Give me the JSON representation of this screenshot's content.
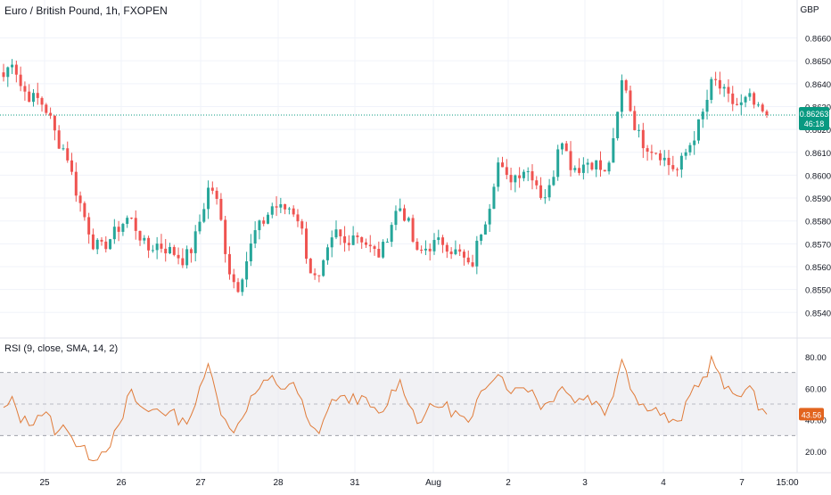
{
  "header": {
    "title": "Euro / British Pound, 1h, FXOPEN",
    "currency": "GBP"
  },
  "rsi": {
    "title": "RSI (9, close, SMA, 14, 2)",
    "current_label": "43.56",
    "ticks": [
      "80.00",
      "60.00",
      "40.00",
      "20.00"
    ],
    "upper_band": 70,
    "lower_band": 30,
    "mid_band": 50
  },
  "price_axis": {
    "ticks": [
      "0.86600",
      "0.86500",
      "0.86400",
      "0.86300",
      "0.86200",
      "0.86100",
      "0.86000",
      "0.85900",
      "0.85800",
      "0.85700",
      "0.85600",
      "0.85500",
      "0.85400"
    ],
    "current_price_label": "0.86263",
    "countdown_label": "46:18"
  },
  "time_axis": {
    "labels": [
      "25",
      "26",
      "27",
      "28",
      "31",
      "Aug",
      "2",
      "3",
      "4",
      "7",
      "15:00"
    ]
  },
  "colors": {
    "up": "#26a69a",
    "down": "#ef5350",
    "rsi_line": "#e07b39",
    "rsi_badge": "#e2641f",
    "current_price": "#089981",
    "band_fill": "#e8e8ec",
    "grid": "#f0f3fa"
  },
  "chart_data": {
    "type": "candlestick",
    "title": "Euro / British Pound, 1h, FXOPEN",
    "ylabel": "GBP",
    "ylim": [
      0.8537,
      0.8668
    ],
    "current_price": 0.86263,
    "grid": true,
    "anchors": [
      [
        "25 Jul",
        0.8643
      ],
      [
        "25 Jul",
        0.8651
      ],
      [
        "25 Jul",
        0.8638
      ],
      [
        "25 Jul",
        0.8634
      ],
      [
        "25 Jul",
        0.8633
      ],
      [
        "25 Jul",
        0.8627
      ],
      [
        "25 Jul",
        0.8615
      ],
      [
        "25 Jul",
        0.861
      ],
      [
        "25 Jul",
        0.8594
      ],
      [
        "25 Jul",
        0.8582
      ],
      [
        "25 Jul",
        0.857
      ],
      [
        "26 Jul",
        0.8568
      ],
      [
        "26 Jul",
        0.8573
      ],
      [
        "26 Jul",
        0.8578
      ],
      [
        "26 Jul",
        0.8582
      ],
      [
        "26 Jul",
        0.8575
      ],
      [
        "26 Jul",
        0.8567
      ],
      [
        "26 Jul",
        0.857
      ],
      [
        "26 Jul",
        0.8568
      ],
      [
        "26 Jul",
        0.8566
      ],
      [
        "26 Jul",
        0.8563
      ],
      [
        "27 Jul",
        0.8568
      ],
      [
        "27 Jul",
        0.8582
      ],
      [
        "27 Jul",
        0.8597
      ],
      [
        "27 Jul",
        0.8585
      ],
      [
        "27 Jul",
        0.856
      ],
      [
        "27 Jul",
        0.855
      ],
      [
        "27 Jul",
        0.8562
      ],
      [
        "27 Jul",
        0.8575
      ],
      [
        "27 Jul",
        0.858
      ],
      [
        "28 Jul",
        0.8587
      ],
      [
        "28 Jul",
        0.8585
      ],
      [
        "28 Jul",
        0.8586
      ],
      [
        "28 Jul",
        0.858
      ],
      [
        "28 Jul",
        0.856
      ],
      [
        "28 Jul",
        0.8552
      ],
      [
        "28 Jul",
        0.8565
      ],
      [
        "28 Jul",
        0.8575
      ],
      [
        "31 Jul",
        0.857
      ],
      [
        "31 Jul",
        0.8575
      ],
      [
        "31 Jul",
        0.8572
      ],
      [
        "31 Jul",
        0.8567
      ],
      [
        "31 Jul",
        0.8565
      ],
      [
        "31 Jul",
        0.8577
      ],
      [
        "31 Jul",
        0.8587
      ],
      [
        "31 Jul",
        0.858
      ],
      [
        "1 Aug",
        0.8565
      ],
      [
        "1 Aug",
        0.8568
      ],
      [
        "1 Aug",
        0.857
      ],
      [
        "1 Aug",
        0.8571
      ],
      [
        "1 Aug",
        0.8567
      ],
      [
        "1 Aug",
        0.8565
      ],
      [
        "1 Aug",
        0.8558
      ],
      [
        "1 Aug",
        0.8574
      ],
      [
        "1 Aug",
        0.8585
      ],
      [
        "2 Aug",
        0.8606
      ],
      [
        "2 Aug",
        0.8598
      ],
      [
        "2 Aug",
        0.86
      ],
      [
        "2 Aug",
        0.8603
      ],
      [
        "2 Aug",
        0.86
      ],
      [
        "2 Aug",
        0.859
      ],
      [
        "2 Aug",
        0.8595
      ],
      [
        "3 Aug",
        0.862
      ],
      [
        "3 Aug",
        0.8605
      ],
      [
        "3 Aug",
        0.8603
      ],
      [
        "3 Aug",
        0.8606
      ],
      [
        "3 Aug",
        0.8605
      ],
      [
        "3 Aug",
        0.86
      ],
      [
        "3 Aug",
        0.8615
      ],
      [
        "3 Aug",
        0.8645
      ],
      [
        "3 Aug",
        0.8625
      ],
      [
        "4 Aug",
        0.8615
      ],
      [
        "4 Aug",
        0.8612
      ],
      [
        "4 Aug",
        0.861
      ],
      [
        "4 Aug",
        0.8605
      ],
      [
        "4 Aug",
        0.8602
      ],
      [
        "4 Aug",
        0.861
      ],
      [
        "4 Aug",
        0.8618
      ],
      [
        "4 Aug",
        0.8628
      ],
      [
        "7 Aug",
        0.8642
      ],
      [
        "7 Aug",
        0.8637
      ],
      [
        "7 Aug",
        0.8632
      ],
      [
        "7 Aug",
        0.863
      ],
      [
        "7 Aug",
        0.8634
      ],
      [
        "7 Aug",
        0.8628
      ],
      [
        "7 Aug",
        0.86263
      ]
    ],
    "rsi_anchors": [
      [
        "25 Jul",
        46
      ],
      [
        "25 Jul",
        52
      ],
      [
        "25 Jul",
        40
      ],
      [
        "25 Jul",
        38
      ],
      [
        "25 Jul",
        45
      ],
      [
        "25 Jul",
        42
      ],
      [
        "25 Jul",
        30
      ],
      [
        "25 Jul",
        38
      ],
      [
        "25 Jul",
        25
      ],
      [
        "25 Jul",
        20
      ],
      [
        "25 Jul",
        16
      ],
      [
        "26 Jul",
        20
      ],
      [
        "26 Jul",
        27
      ],
      [
        "26 Jul",
        35
      ],
      [
        "26 Jul",
        58
      ],
      [
        "26 Jul",
        50
      ],
      [
        "26 Jul",
        44
      ],
      [
        "26 Jul",
        48
      ],
      [
        "26 Jul",
        45
      ],
      [
        "26 Jul",
        43
      ],
      [
        "26 Jul",
        38
      ],
      [
        "27 Jul",
        45
      ],
      [
        "27 Jul",
        60
      ],
      [
        "27 Jul",
        78
      ],
      [
        "27 Jul",
        50
      ],
      [
        "27 Jul",
        33
      ],
      [
        "27 Jul",
        36
      ],
      [
        "27 Jul",
        48
      ],
      [
        "27 Jul",
        57
      ],
      [
        "27 Jul",
        62
      ],
      [
        "28 Jul",
        66
      ],
      [
        "28 Jul",
        60
      ],
      [
        "28 Jul",
        63
      ],
      [
        "28 Jul",
        55
      ],
      [
        "28 Jul",
        35
      ],
      [
        "28 Jul",
        32
      ],
      [
        "28 Jul",
        45
      ],
      [
        "28 Jul",
        55
      ],
      [
        "31 Jul",
        52
      ],
      [
        "31 Jul",
        55
      ],
      [
        "31 Jul",
        52
      ],
      [
        "31 Jul",
        48
      ],
      [
        "31 Jul",
        40
      ],
      [
        "31 Jul",
        55
      ],
      [
        "31 Jul",
        65
      ],
      [
        "31 Jul",
        55
      ],
      [
        "1 Aug",
        38
      ],
      [
        "1 Aug",
        45
      ],
      [
        "1 Aug",
        48
      ],
      [
        "1 Aug",
        50
      ],
      [
        "1 Aug",
        45
      ],
      [
        "1 Aug",
        42
      ],
      [
        "1 Aug",
        35
      ],
      [
        "1 Aug",
        55
      ],
      [
        "1 Aug",
        65
      ],
      [
        "2 Aug",
        72
      ],
      [
        "2 Aug",
        62
      ],
      [
        "2 Aug",
        58
      ],
      [
        "2 Aug",
        62
      ],
      [
        "2 Aug",
        58
      ],
      [
        "2 Aug",
        48
      ],
      [
        "2 Aug",
        52
      ],
      [
        "3 Aug",
        64
      ],
      [
        "3 Aug",
        55
      ],
      [
        "3 Aug",
        52
      ],
      [
        "3 Aug",
        56
      ],
      [
        "3 Aug",
        50
      ],
      [
        "3 Aug",
        45
      ],
      [
        "3 Aug",
        60
      ],
      [
        "3 Aug",
        82
      ],
      [
        "3 Aug",
        58
      ],
      [
        "4 Aug",
        48
      ],
      [
        "4 Aug",
        50
      ],
      [
        "4 Aug",
        45
      ],
      [
        "4 Aug",
        40
      ],
      [
        "4 Aug",
        36
      ],
      [
        "4 Aug",
        48
      ],
      [
        "4 Aug",
        62
      ],
      [
        "4 Aug",
        66
      ],
      [
        "7 Aug",
        80
      ],
      [
        "7 Aug",
        62
      ],
      [
        "7 Aug",
        56
      ],
      [
        "7 Aug",
        58
      ],
      [
        "7 Aug",
        60
      ],
      [
        "7 Aug",
        50
      ],
      [
        "7 Aug",
        43.56
      ]
    ]
  }
}
